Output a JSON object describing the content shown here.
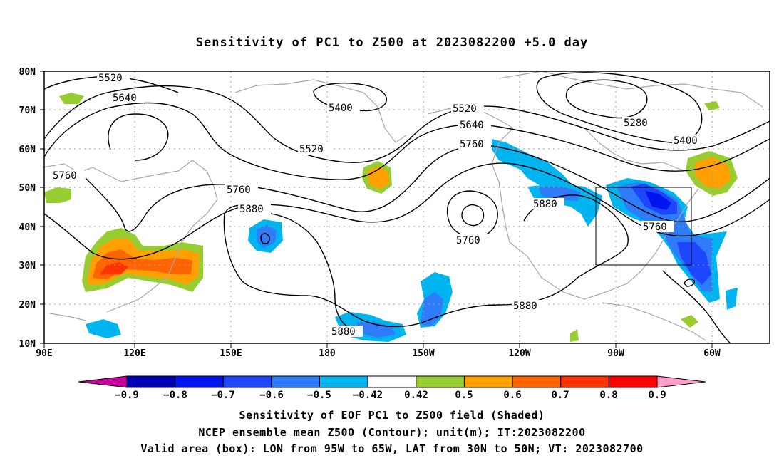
{
  "title": "Sensitivity of PC1 to Z500 at 2023082200 +5.0 day",
  "lat_labels": [
    "80N",
    "70N",
    "60N",
    "50N",
    "40N",
    "30N",
    "20N",
    "10N"
  ],
  "lon_labels": [
    "90E",
    "120E",
    "150E",
    "180",
    "150W",
    "120W",
    "90W",
    "60W"
  ],
  "contour_labels": [
    {
      "text": "5520",
      "id": "c5520a"
    },
    {
      "text": "5640",
      "id": "c5640a"
    },
    {
      "text": "5400",
      "id": "c5400a"
    },
    {
      "text": "5520",
      "id": "c5520b"
    },
    {
      "text": "5520",
      "id": "c5520c"
    },
    {
      "text": "5640",
      "id": "c5640b"
    },
    {
      "text": "5760",
      "id": "c5760a"
    },
    {
      "text": "5280",
      "id": "c5280"
    },
    {
      "text": "5400",
      "id": "c5400b"
    },
    {
      "text": "5760",
      "id": "c5760b"
    },
    {
      "text": "5760",
      "id": "c5760c"
    },
    {
      "text": "5880",
      "id": "c5880a"
    },
    {
      "text": "5760",
      "id": "c5760d"
    },
    {
      "text": "5880",
      "id": "c5880b"
    },
    {
      "text": "5760",
      "id": "c5760e"
    },
    {
      "text": "5880",
      "id": "c5880c"
    },
    {
      "text": "5880",
      "id": "c5880d"
    }
  ],
  "colorbar": {
    "labels": [
      "−0.9",
      "−0.8",
      "−0.7",
      "−0.6",
      "−0.5",
      "−0.42",
      "0.42",
      "0.5",
      "0.6",
      "0.7",
      "0.8",
      "0.9"
    ],
    "colors": [
      "#0000b4",
      "#0014f0",
      "#1e46ff",
      "#2e7cfa",
      "#00b4f0",
      "#ffffff",
      "#98cd32",
      "#ffa000",
      "#ff6400",
      "#ff3200",
      "#ff0000"
    ],
    "left_arrow_color": "#c8009c",
    "right_arrow_color": "#ff9ec8"
  },
  "caption": {
    "line1": "Sensitivity of EOF PC1 to Z500 field (Shaded)",
    "line2": "NCEP ensemble mean Z500 (Contour); unit(m); IT:2023082200",
    "line3": "Valid area (box): LON from 95W to 65W, LAT from 30N to 50N; VT: 2023082700"
  },
  "valid_box": {
    "lon_min": "95W",
    "lon_max": "65W",
    "lat_min": "30N",
    "lat_max": "50N"
  }
}
